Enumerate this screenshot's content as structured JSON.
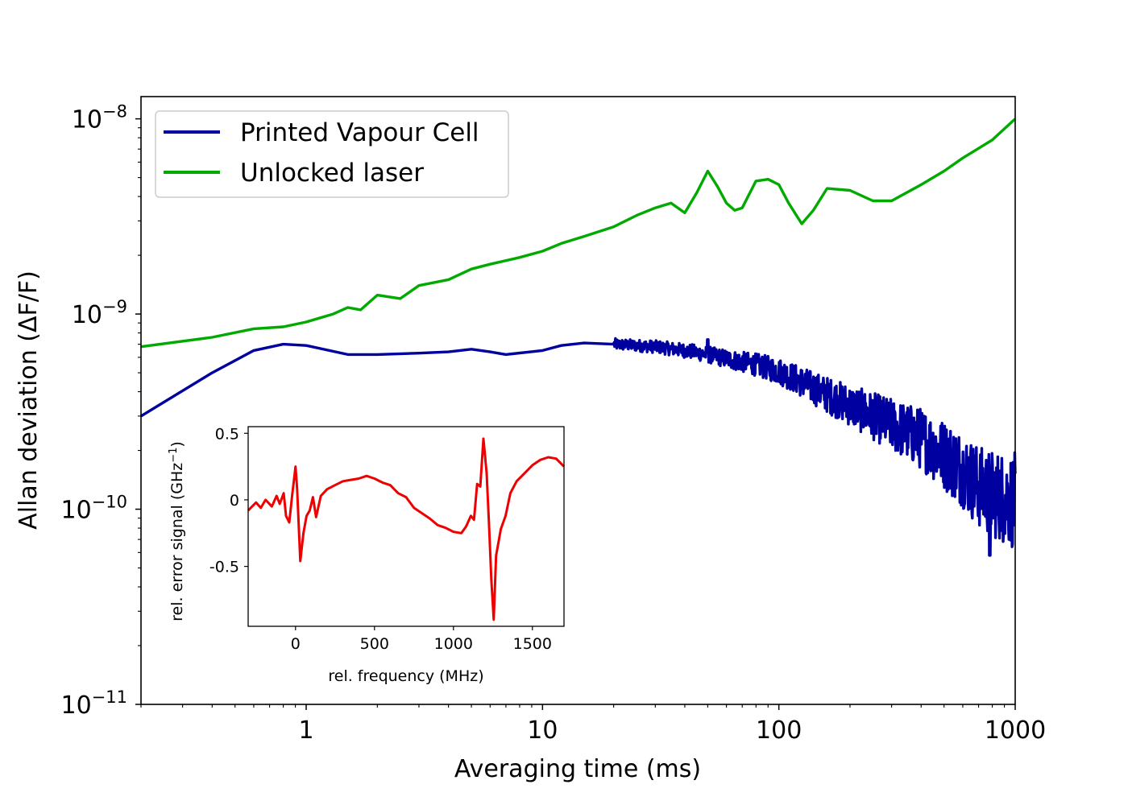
{
  "chart_data": [
    {
      "type": "line",
      "xlabel": "Averaging time (ms)",
      "ylabel": "Allan deviation (ΔF/F)",
      "xscale": "log",
      "yscale": "log",
      "xlim": [
        0.2,
        1000
      ],
      "ylim": [
        1e-11,
        1.3e-08
      ],
      "x_ticks": [
        1,
        10,
        100,
        1000
      ],
      "x_tick_labels": [
        "1",
        "10",
        "100",
        "1000"
      ],
      "y_ticks": [
        1e-11,
        1e-10,
        1e-09,
        1e-08
      ],
      "y_tick_labels": [
        {
          "base": "10",
          "exp": "−11"
        },
        {
          "base": "10",
          "exp": "−10"
        },
        {
          "base": "10",
          "exp": "−9"
        },
        {
          "base": "10",
          "exp": "−8"
        }
      ],
      "grid": false,
      "legend_position": "top-left",
      "series": [
        {
          "name": "Printed Vapour Cell",
          "color": "#0000a0",
          "points": [
            [
              0.2,
              3e-10
            ],
            [
              0.4,
              5e-10
            ],
            [
              0.6,
              6.5e-10
            ],
            [
              0.8,
              7e-10
            ],
            [
              1.0,
              6.9e-10
            ],
            [
              1.5,
              6.2e-10
            ],
            [
              2.0,
              6.2e-10
            ],
            [
              3.0,
              6.3e-10
            ],
            [
              4.0,
              6.4e-10
            ],
            [
              5.0,
              6.6e-10
            ],
            [
              6.0,
              6.4e-10
            ],
            [
              7.0,
              6.2e-10
            ],
            [
              10,
              6.5e-10
            ],
            [
              12,
              6.9e-10
            ],
            [
              15,
              7.1e-10
            ],
            [
              20,
              7e-10
            ],
            [
              25,
              6.9e-10
            ],
            [
              30,
              6.8e-10
            ],
            [
              40,
              6.5e-10
            ],
            [
              50,
              6.2e-10
            ],
            [
              60,
              5.9e-10
            ],
            [
              80,
              5.5e-10
            ],
            [
              100,
              5.1e-10
            ],
            [
              120,
              4.6e-10
            ],
            [
              150,
              4e-10
            ],
            [
              200,
              3.4e-10
            ],
            [
              250,
              3e-10
            ],
            [
              300,
              2.7e-10
            ],
            [
              400,
              2.3e-10
            ],
            [
              500,
              1.9e-10
            ],
            [
              600,
              1.6e-10
            ],
            [
              700,
              1.3e-10
            ],
            [
              800,
              1.2e-10
            ],
            [
              1000,
              1.1e-10
            ]
          ],
          "noise_onset_ms": 20,
          "spikes": [
            [
              50,
              7.4e-10
            ],
            [
              780,
              5.8e-11
            ]
          ]
        },
        {
          "name": "Unlocked laser",
          "color": "#00aa00",
          "points": [
            [
              0.2,
              6.8e-10
            ],
            [
              0.4,
              7.6e-10
            ],
            [
              0.6,
              8.4e-10
            ],
            [
              0.8,
              8.6e-10
            ],
            [
              1.0,
              9.1e-10
            ],
            [
              1.3,
              1e-09
            ],
            [
              1.5,
              1.08e-09
            ],
            [
              1.7,
              1.05e-09
            ],
            [
              2.0,
              1.25e-09
            ],
            [
              2.5,
              1.2e-09
            ],
            [
              3.0,
              1.4e-09
            ],
            [
              4.0,
              1.5e-09
            ],
            [
              5.0,
              1.7e-09
            ],
            [
              6.0,
              1.8e-09
            ],
            [
              8.0,
              1.95e-09
            ],
            [
              10,
              2.1e-09
            ],
            [
              12,
              2.3e-09
            ],
            [
              15,
              2.5e-09
            ],
            [
              20,
              2.8e-09
            ],
            [
              25,
              3.2e-09
            ],
            [
              30,
              3.5e-09
            ],
            [
              35,
              3.7e-09
            ],
            [
              40,
              3.3e-09
            ],
            [
              45,
              4.2e-09
            ],
            [
              50,
              5.4e-09
            ],
            [
              55,
              4.5e-09
            ],
            [
              60,
              3.7e-09
            ],
            [
              65,
              3.4e-09
            ],
            [
              70,
              3.5e-09
            ],
            [
              80,
              4.8e-09
            ],
            [
              90,
              4.9e-09
            ],
            [
              100,
              4.6e-09
            ],
            [
              110,
              3.7e-09
            ],
            [
              125,
              2.9e-09
            ],
            [
              140,
              3.4e-09
            ],
            [
              160,
              4.4e-09
            ],
            [
              200,
              4.3e-09
            ],
            [
              250,
              3.8e-09
            ],
            [
              300,
              3.8e-09
            ],
            [
              400,
              4.6e-09
            ],
            [
              500,
              5.4e-09
            ],
            [
              600,
              6.3e-09
            ],
            [
              800,
              7.8e-09
            ],
            [
              1000,
              1e-08
            ]
          ]
        }
      ]
    },
    {
      "type": "line",
      "role": "inset",
      "xlabel": "rel. frequency (MHz)",
      "ylabel": "rel. error signal (GHz",
      "ylabel_sup": "−1",
      "ylabel_tail": ")",
      "xlim": [
        -300,
        1700
      ],
      "ylim": [
        -0.95,
        0.55
      ],
      "x_ticks": [
        0,
        500,
        1000,
        1500
      ],
      "x_tick_labels": [
        "0",
        "500",
        "1000",
        "1500"
      ],
      "y_ticks": [
        0.5,
        0,
        -0.5
      ],
      "y_tick_labels": [
        "0.5",
        "0",
        "-0.5"
      ],
      "series": [
        {
          "color": "#ee0000",
          "points": [
            [
              -300,
              -0.08
            ],
            [
              -250,
              -0.02
            ],
            [
              -220,
              -0.06
            ],
            [
              -190,
              0.0
            ],
            [
              -150,
              -0.05
            ],
            [
              -120,
              0.03
            ],
            [
              -100,
              -0.03
            ],
            [
              -75,
              0.05
            ],
            [
              -60,
              -0.12
            ],
            [
              -40,
              -0.17
            ],
            [
              -20,
              0.05
            ],
            [
              0,
              0.25
            ],
            [
              10,
              0.08
            ],
            [
              30,
              -0.46
            ],
            [
              50,
              -0.25
            ],
            [
              70,
              -0.12
            ],
            [
              90,
              -0.08
            ],
            [
              110,
              0.02
            ],
            [
              130,
              -0.13
            ],
            [
              160,
              0.03
            ],
            [
              200,
              0.08
            ],
            [
              250,
              0.11
            ],
            [
              300,
              0.14
            ],
            [
              350,
              0.15
            ],
            [
              400,
              0.16
            ],
            [
              450,
              0.18
            ],
            [
              500,
              0.16
            ],
            [
              550,
              0.13
            ],
            [
              600,
              0.11
            ],
            [
              650,
              0.05
            ],
            [
              700,
              0.02
            ],
            [
              750,
              -0.06
            ],
            [
              800,
              -0.1
            ],
            [
              850,
              -0.14
            ],
            [
              900,
              -0.19
            ],
            [
              950,
              -0.21
            ],
            [
              1000,
              -0.24
            ],
            [
              1050,
              -0.25
            ],
            [
              1080,
              -0.2
            ],
            [
              1110,
              -0.12
            ],
            [
              1130,
              -0.15
            ],
            [
              1150,
              0.12
            ],
            [
              1170,
              0.1
            ],
            [
              1190,
              0.46
            ],
            [
              1210,
              0.2
            ],
            [
              1225,
              -0.18
            ],
            [
              1240,
              -0.6
            ],
            [
              1255,
              -0.9
            ],
            [
              1270,
              -0.42
            ],
            [
              1300,
              -0.22
            ],
            [
              1330,
              -0.12
            ],
            [
              1360,
              0.05
            ],
            [
              1400,
              0.14
            ],
            [
              1450,
              0.2
            ],
            [
              1500,
              0.26
            ],
            [
              1550,
              0.3
            ],
            [
              1600,
              0.32
            ],
            [
              1650,
              0.31
            ],
            [
              1700,
              0.25
            ]
          ]
        }
      ]
    }
  ]
}
